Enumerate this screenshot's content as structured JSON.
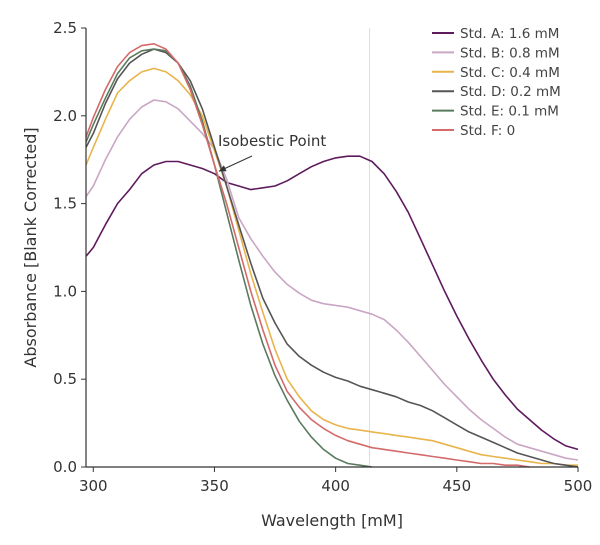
{
  "chart_data": {
    "type": "line",
    "title": "",
    "xlabel": "Wavelength [mM]",
    "ylabel": "Absorbance [Blank Corrected]",
    "xlim": [
      297,
      500
    ],
    "ylim": [
      0,
      2.5
    ],
    "x_ticks": [
      "300",
      "350",
      "400",
      "450",
      "500"
    ],
    "y_ticks": [
      "0.0",
      "0.5",
      "1.0",
      "1.5",
      "2.0",
      "2.5"
    ],
    "grid": false,
    "legend_position": "top-right",
    "reference_line_x": 414,
    "annotation": {
      "text": "Isobestic Point",
      "point": [
        351,
        1.65
      ]
    },
    "series": [
      {
        "name": "Std. A: 1.6 mM",
        "color": "#5e1a5e",
        "points": [
          [
            297,
            1.2
          ],
          [
            300,
            1.25
          ],
          [
            305,
            1.38
          ],
          [
            310,
            1.5
          ],
          [
            315,
            1.58
          ],
          [
            320,
            1.67
          ],
          [
            325,
            1.72
          ],
          [
            330,
            1.74
          ],
          [
            335,
            1.74
          ],
          [
            340,
            1.72
          ],
          [
            345,
            1.7
          ],
          [
            350,
            1.67
          ],
          [
            355,
            1.62
          ],
          [
            360,
            1.6
          ],
          [
            365,
            1.58
          ],
          [
            370,
            1.59
          ],
          [
            375,
            1.6
          ],
          [
            380,
            1.63
          ],
          [
            385,
            1.67
          ],
          [
            390,
            1.71
          ],
          [
            395,
            1.74
          ],
          [
            400,
            1.76
          ],
          [
            405,
            1.77
          ],
          [
            410,
            1.77
          ],
          [
            415,
            1.74
          ],
          [
            420,
            1.67
          ],
          [
            425,
            1.57
          ],
          [
            430,
            1.45
          ],
          [
            435,
            1.3
          ],
          [
            440,
            1.15
          ],
          [
            445,
            1.0
          ],
          [
            450,
            0.86
          ],
          [
            455,
            0.73
          ],
          [
            460,
            0.61
          ],
          [
            465,
            0.5
          ],
          [
            470,
            0.41
          ],
          [
            475,
            0.33
          ],
          [
            480,
            0.27
          ],
          [
            485,
            0.21
          ],
          [
            490,
            0.16
          ],
          [
            495,
            0.12
          ],
          [
            500,
            0.1
          ]
        ]
      },
      {
        "name": "Std. B: 0.8 mM",
        "color": "#c9a7c4",
        "points": [
          [
            297,
            1.54
          ],
          [
            300,
            1.6
          ],
          [
            305,
            1.75
          ],
          [
            310,
            1.88
          ],
          [
            315,
            1.98
          ],
          [
            320,
            2.05
          ],
          [
            325,
            2.09
          ],
          [
            330,
            2.08
          ],
          [
            335,
            2.04
          ],
          [
            340,
            1.97
          ],
          [
            345,
            1.9
          ],
          [
            350,
            1.81
          ],
          [
            355,
            1.64
          ],
          [
            360,
            1.42
          ],
          [
            365,
            1.3
          ],
          [
            370,
            1.2
          ],
          [
            375,
            1.11
          ],
          [
            380,
            1.04
          ],
          [
            385,
            0.99
          ],
          [
            390,
            0.95
          ],
          [
            395,
            0.93
          ],
          [
            400,
            0.92
          ],
          [
            405,
            0.91
          ],
          [
            410,
            0.89
          ],
          [
            415,
            0.87
          ],
          [
            420,
            0.84
          ],
          [
            425,
            0.78
          ],
          [
            430,
            0.71
          ],
          [
            435,
            0.63
          ],
          [
            440,
            0.55
          ],
          [
            445,
            0.47
          ],
          [
            450,
            0.4
          ],
          [
            455,
            0.33
          ],
          [
            460,
            0.27
          ],
          [
            465,
            0.22
          ],
          [
            470,
            0.17
          ],
          [
            475,
            0.13
          ],
          [
            480,
            0.11
          ],
          [
            485,
            0.09
          ],
          [
            490,
            0.07
          ],
          [
            495,
            0.05
          ],
          [
            500,
            0.04
          ]
        ]
      },
      {
        "name": "Std. C: 0.4 mM",
        "color": "#e8b44c",
        "points": [
          [
            297,
            1.72
          ],
          [
            300,
            1.82
          ],
          [
            305,
            1.98
          ],
          [
            310,
            2.13
          ],
          [
            315,
            2.2
          ],
          [
            320,
            2.25
          ],
          [
            325,
            2.27
          ],
          [
            330,
            2.25
          ],
          [
            335,
            2.2
          ],
          [
            340,
            2.12
          ],
          [
            345,
            2.0
          ],
          [
            350,
            1.8
          ],
          [
            355,
            1.6
          ],
          [
            360,
            1.35
          ],
          [
            365,
            1.1
          ],
          [
            370,
            0.88
          ],
          [
            375,
            0.67
          ],
          [
            380,
            0.5
          ],
          [
            385,
            0.4
          ],
          [
            390,
            0.32
          ],
          [
            395,
            0.27
          ],
          [
            400,
            0.24
          ],
          [
            405,
            0.22
          ],
          [
            410,
            0.21
          ],
          [
            415,
            0.2
          ],
          [
            420,
            0.19
          ],
          [
            425,
            0.18
          ],
          [
            430,
            0.17
          ],
          [
            435,
            0.16
          ],
          [
            440,
            0.15
          ],
          [
            445,
            0.13
          ],
          [
            450,
            0.11
          ],
          [
            455,
            0.09
          ],
          [
            460,
            0.07
          ],
          [
            465,
            0.06
          ],
          [
            470,
            0.05
          ],
          [
            475,
            0.04
          ],
          [
            480,
            0.03
          ],
          [
            485,
            0.02
          ],
          [
            490,
            0.02
          ],
          [
            495,
            0.01
          ],
          [
            500,
            0.01
          ]
        ]
      },
      {
        "name": "Std. D: 0.2 mM",
        "color": "#555555",
        "points": [
          [
            297,
            1.82
          ],
          [
            300,
            1.9
          ],
          [
            305,
            2.07
          ],
          [
            310,
            2.21
          ],
          [
            315,
            2.3
          ],
          [
            320,
            2.35
          ],
          [
            325,
            2.38
          ],
          [
            330,
            2.36
          ],
          [
            335,
            2.3
          ],
          [
            340,
            2.2
          ],
          [
            345,
            2.04
          ],
          [
            350,
            1.82
          ],
          [
            355,
            1.6
          ],
          [
            360,
            1.38
          ],
          [
            365,
            1.16
          ],
          [
            370,
            0.96
          ],
          [
            375,
            0.82
          ],
          [
            380,
            0.7
          ],
          [
            385,
            0.63
          ],
          [
            390,
            0.58
          ],
          [
            395,
            0.54
          ],
          [
            400,
            0.51
          ],
          [
            405,
            0.49
          ],
          [
            410,
            0.46
          ],
          [
            415,
            0.44
          ],
          [
            420,
            0.42
          ],
          [
            425,
            0.4
          ],
          [
            430,
            0.37
          ],
          [
            435,
            0.35
          ],
          [
            440,
            0.32
          ],
          [
            445,
            0.28
          ],
          [
            450,
            0.24
          ],
          [
            455,
            0.2
          ],
          [
            460,
            0.17
          ],
          [
            465,
            0.14
          ],
          [
            470,
            0.11
          ],
          [
            475,
            0.08
          ],
          [
            480,
            0.06
          ],
          [
            485,
            0.04
          ],
          [
            490,
            0.02
          ],
          [
            495,
            0.01
          ],
          [
            500,
            0.0
          ]
        ]
      },
      {
        "name": "Std. E: 0.1 mM",
        "color": "#5a7a5e",
        "points": [
          [
            297,
            1.85
          ],
          [
            300,
            1.95
          ],
          [
            305,
            2.1
          ],
          [
            310,
            2.24
          ],
          [
            315,
            2.33
          ],
          [
            320,
            2.37
          ],
          [
            325,
            2.38
          ],
          [
            330,
            2.37
          ],
          [
            335,
            2.3
          ],
          [
            340,
            2.17
          ],
          [
            345,
            1.97
          ],
          [
            350,
            1.72
          ],
          [
            355,
            1.45
          ],
          [
            360,
            1.18
          ],
          [
            365,
            0.92
          ],
          [
            370,
            0.7
          ],
          [
            375,
            0.52
          ],
          [
            380,
            0.38
          ],
          [
            385,
            0.26
          ],
          [
            390,
            0.17
          ],
          [
            395,
            0.1
          ],
          [
            400,
            0.05
          ],
          [
            405,
            0.02
          ],
          [
            410,
            0.01
          ],
          [
            415,
            0.0
          ]
        ]
      },
      {
        "name": "Std. F: 0",
        "color": "#d46a6a",
        "points": [
          [
            297,
            1.88
          ],
          [
            300,
            1.99
          ],
          [
            305,
            2.15
          ],
          [
            310,
            2.28
          ],
          [
            315,
            2.36
          ],
          [
            320,
            2.4
          ],
          [
            325,
            2.41
          ],
          [
            330,
            2.38
          ],
          [
            335,
            2.3
          ],
          [
            340,
            2.15
          ],
          [
            345,
            1.95
          ],
          [
            350,
            1.72
          ],
          [
            355,
            1.5
          ],
          [
            360,
            1.25
          ],
          [
            365,
            1.0
          ],
          [
            370,
            0.78
          ],
          [
            375,
            0.58
          ],
          [
            380,
            0.43
          ],
          [
            385,
            0.34
          ],
          [
            390,
            0.27
          ],
          [
            395,
            0.22
          ],
          [
            400,
            0.18
          ],
          [
            405,
            0.15
          ],
          [
            410,
            0.13
          ],
          [
            415,
            0.11
          ],
          [
            420,
            0.1
          ],
          [
            425,
            0.09
          ],
          [
            430,
            0.08
          ],
          [
            435,
            0.07
          ],
          [
            440,
            0.06
          ],
          [
            445,
            0.05
          ],
          [
            450,
            0.04
          ],
          [
            455,
            0.03
          ],
          [
            460,
            0.02
          ],
          [
            465,
            0.02
          ],
          [
            470,
            0.01
          ],
          [
            475,
            0.01
          ],
          [
            480,
            0.0
          ]
        ]
      }
    ]
  }
}
